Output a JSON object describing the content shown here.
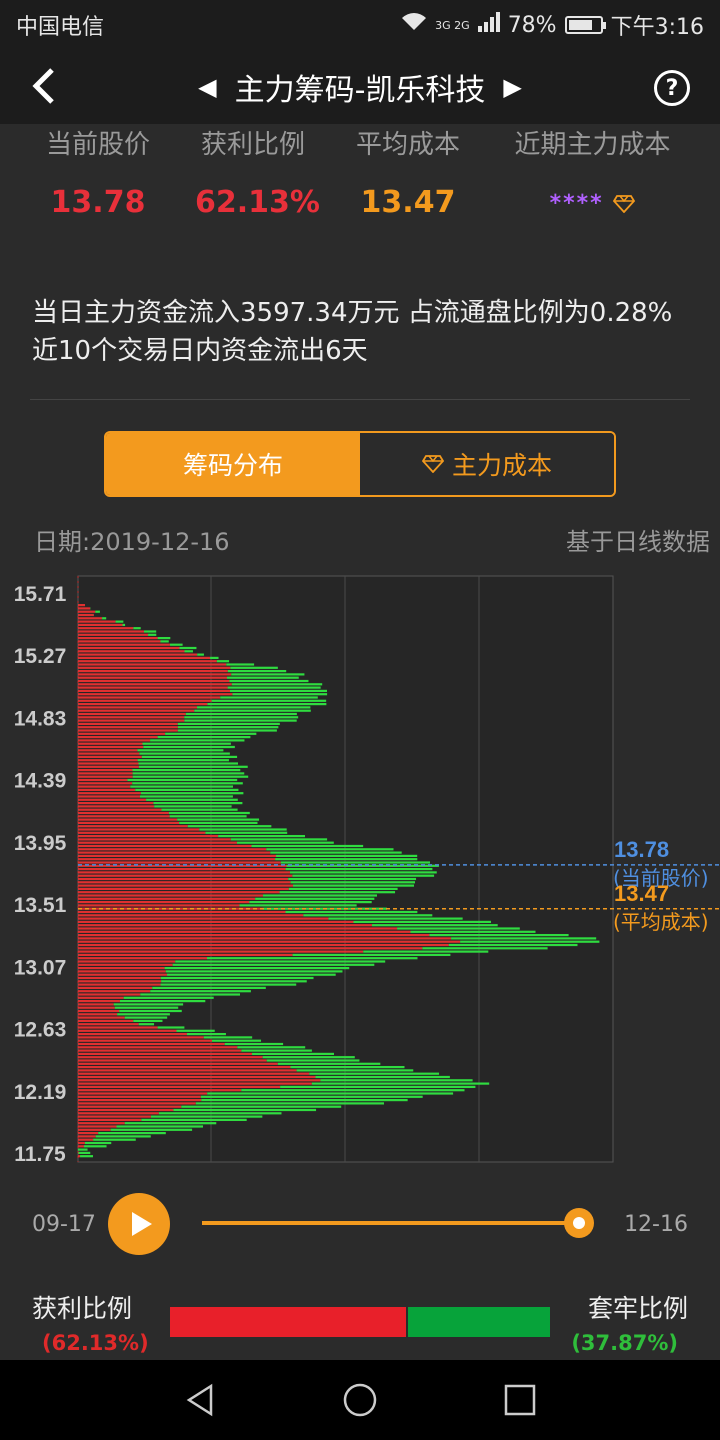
{
  "status_bar": {
    "carrier": "中国电信",
    "network": "3G 2G",
    "battery": "78%",
    "battery_level": 0.78,
    "time": "下午3:16"
  },
  "header": {
    "title": "主力筹码-凯乐科技"
  },
  "stats": [
    {
      "label": "当前股价",
      "value": "13.78",
      "color": "#e8303a"
    },
    {
      "label": "获利比例",
      "value": "62.13%",
      "color": "#e8303a"
    },
    {
      "label": "平均成本",
      "value": "13.47",
      "color": "#f39a1e"
    },
    {
      "label": "近期主力成本",
      "value": "****",
      "color": "#b060ff"
    }
  ],
  "description": "当日主力资金流入3597.34万元 占流通盘比例为0.28% 近10个交易日内资金流出6天",
  "tabs": {
    "distribution": "筹码分布",
    "main_cost": "主力成本"
  },
  "date_label": "日期:2019-12-16",
  "data_basis": "基于日线数据",
  "chart_data": {
    "type": "bar",
    "orientation": "horizontal",
    "y_ticks": [
      "15.71",
      "15.27",
      "14.83",
      "14.39",
      "13.95",
      "13.51",
      "13.07",
      "12.63",
      "12.19",
      "11.75"
    ],
    "ylim": [
      11.75,
      15.71
    ],
    "current_price": {
      "value": 13.78,
      "label": "13.78",
      "caption": "(当前股价)",
      "color": "#4f8fe0"
    },
    "average_cost": {
      "value": 13.47,
      "label": "13.47",
      "caption": "(平均成本)",
      "color": "#f39a1e"
    },
    "profit_color": "#e03030",
    "trapped_color": "#2fdc40"
  },
  "player": {
    "start": "09-17",
    "end": "12-16",
    "progress": 1.0
  },
  "ratio": {
    "profit_label": "获利比例",
    "profit_value": "(62.13%)",
    "profit_fraction": 0.6213,
    "trapped_label": "套牢比例",
    "trapped_value": "(37.87%)",
    "trapped_fraction": 0.3787
  }
}
